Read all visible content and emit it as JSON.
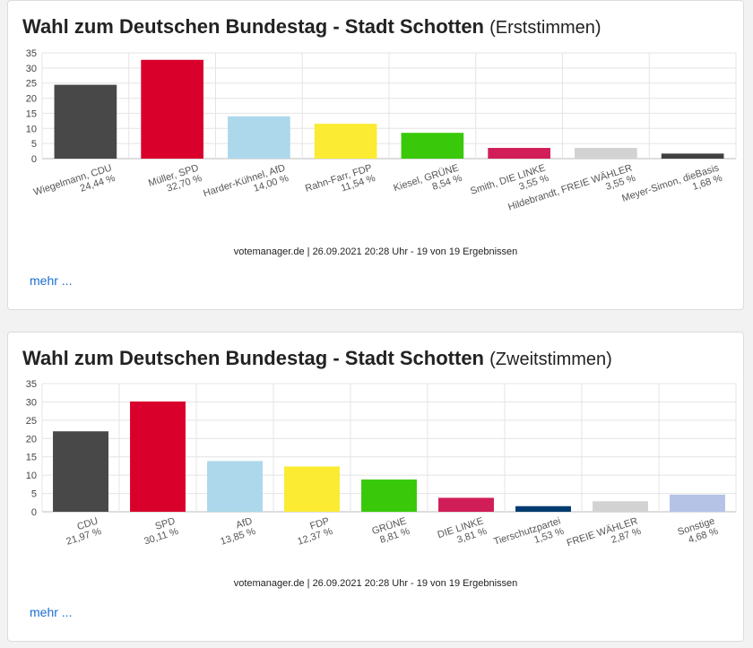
{
  "chart_data": [
    {
      "type": "bar",
      "title": "Wahl zum Deutschen Bundestag - Stadt Schotten",
      "subtitle": "(Erststimmen)",
      "categories": [
        "Wiegelmann, CDU",
        "Müller, SPD",
        "Harder-Kühnel, AfD",
        "Rahn-Farr, FDP",
        "Kiesel, GRÜNE",
        "Smith, DIE LINKE",
        "Hildebrandt, FREIE WÄHLER",
        "Meyer-Simon, dieBasis"
      ],
      "value_labels": [
        "24,44 %",
        "32,70 %",
        "14,00 %",
        "11,54 %",
        "8,54 %",
        "3,55 %",
        "3,55 %",
        "1,68 %"
      ],
      "values": [
        24.44,
        32.7,
        14.0,
        11.54,
        8.54,
        3.55,
        3.55,
        1.68
      ],
      "colors": [
        "#484848",
        "#d9002c",
        "#add8eb",
        "#fbeb33",
        "#39c90a",
        "#d11d58",
        "#d2d2d2",
        "#404040"
      ],
      "yticks": [
        "0",
        "5",
        "10",
        "15",
        "20",
        "25",
        "30",
        "35"
      ],
      "ylim": [
        0,
        35
      ],
      "grid": true,
      "source": "votemanager.de | 26.09.2021 20:28 Uhr - 19 von 19 Ergebnissen",
      "more_label": "mehr ..."
    },
    {
      "type": "bar",
      "title": "Wahl zum Deutschen Bundestag - Stadt Schotten",
      "subtitle": "(Zweitstimmen)",
      "categories": [
        "CDU",
        "SPD",
        "AfD",
        "FDP",
        "GRÜNE",
        "DIE LINKE",
        "Tierschutzpartei",
        "FREIE WÄHLER",
        "Sonstige"
      ],
      "value_labels": [
        "21,97 %",
        "30,11 %",
        "13,85 %",
        "12,37 %",
        "8,81 %",
        "3,81 %",
        "1,53 %",
        "2,87 %",
        "4,68 %"
      ],
      "values": [
        21.97,
        30.11,
        13.85,
        12.37,
        8.81,
        3.81,
        1.53,
        2.87,
        4.68
      ],
      "colors": [
        "#484848",
        "#d9002c",
        "#add8eb",
        "#fbeb33",
        "#39c90a",
        "#d11d58",
        "#003b70",
        "#d2d2d2",
        "#b4c3e6"
      ],
      "yticks": [
        "0",
        "5",
        "10",
        "15",
        "20",
        "25",
        "30",
        "35"
      ],
      "ylim": [
        0,
        35
      ],
      "grid": true,
      "source": "votemanager.de | 26.09.2021 20:28 Uhr - 19 von 19 Ergebnissen",
      "more_label": "mehr ..."
    }
  ]
}
